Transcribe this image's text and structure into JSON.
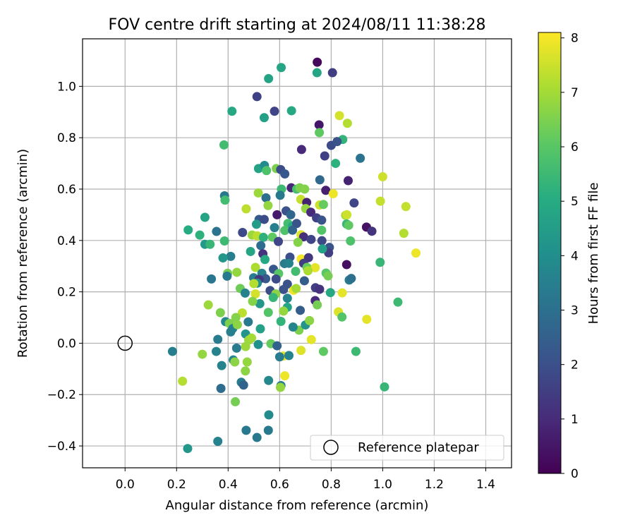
{
  "chart_data": {
    "type": "scatter",
    "title": "FOV centre drift starting at 2024/08/11 11:38:28",
    "xlabel": "Angular distance from reference (arcmin)",
    "ylabel": "Rotation from reference (arcmin)",
    "xlim": [
      -0.165,
      1.5
    ],
    "ylim": [
      -0.485,
      1.185
    ],
    "xticks": [
      0.0,
      0.2,
      0.4,
      0.6,
      0.8,
      1.0,
      1.2,
      1.4
    ],
    "yticks": [
      -0.4,
      -0.2,
      0.0,
      0.2,
      0.4,
      0.6,
      0.8,
      1.0
    ],
    "grid": true,
    "colorbar": {
      "label": "Hours from first FF file",
      "range": [
        0,
        8.1
      ],
      "ticks": [
        0,
        1,
        2,
        3,
        4,
        5,
        6,
        7,
        8
      ],
      "colormap": "viridis"
    },
    "legend": {
      "position": "lower-right",
      "entries": [
        "Reference platepar"
      ]
    },
    "reference_point": {
      "x": 0.0,
      "y": 0.0
    },
    "points": [
      [
        0.746,
        1.094,
        0.2
      ],
      [
        0.805,
        1.053,
        1.5
      ],
      [
        0.606,
        1.073,
        4.8
      ],
      [
        0.745,
        1.053,
        4.8
      ],
      [
        0.557,
        1.03,
        4.7
      ],
      [
        0.512,
        0.96,
        1.6
      ],
      [
        0.58,
        0.903,
        1.7
      ],
      [
        0.415,
        0.903,
        4.9
      ],
      [
        0.646,
        0.905,
        4.9
      ],
      [
        0.54,
        0.878,
        4.6
      ],
      [
        0.753,
        0.85,
        0.5
      ],
      [
        0.832,
        0.886,
        7.6
      ],
      [
        0.863,
        0.856,
        7.2
      ],
      [
        0.754,
        0.82,
        6.1
      ],
      [
        0.845,
        0.793,
        5.3
      ],
      [
        0.8,
        0.77,
        1.9
      ],
      [
        0.384,
        0.772,
        5.6
      ],
      [
        0.823,
        0.785,
        2.1
      ],
      [
        0.685,
        0.754,
        1.0
      ],
      [
        0.775,
        0.729,
        1.6
      ],
      [
        0.913,
        0.72,
        3.1
      ],
      [
        0.817,
        0.7,
        5.2
      ],
      [
        0.518,
        0.68,
        4.7
      ],
      [
        0.541,
        0.692,
        3.9
      ],
      [
        0.587,
        0.68,
        6.5
      ],
      [
        0.549,
        0.672,
        5.8
      ],
      [
        0.604,
        0.676,
        1.9
      ],
      [
        0.62,
        0.659,
        2.2
      ],
      [
        1.0,
        0.648,
        7.5
      ],
      [
        0.756,
        0.636,
        2.8
      ],
      [
        0.866,
        0.633,
        0.8
      ],
      [
        0.607,
        0.6,
        5.5
      ],
      [
        0.645,
        0.605,
        0.9
      ],
      [
        0.666,
        0.6,
        5.7
      ],
      [
        0.678,
        0.605,
        6.5
      ],
      [
        0.697,
        0.6,
        6.6
      ],
      [
        0.779,
        0.595,
        0.7
      ],
      [
        0.808,
        0.582,
        7.9
      ],
      [
        0.517,
        0.585,
        6.9
      ],
      [
        0.602,
        0.576,
        3.3
      ],
      [
        0.547,
        0.566,
        3.0
      ],
      [
        0.386,
        0.574,
        3.3
      ],
      [
        0.388,
        0.557,
        5.6
      ],
      [
        0.682,
        0.56,
        7.4
      ],
      [
        0.705,
        0.548,
        0.8
      ],
      [
        0.755,
        0.538,
        7.5
      ],
      [
        0.77,
        0.54,
        6.2
      ],
      [
        0.991,
        0.553,
        7.4
      ],
      [
        0.889,
        0.546,
        1.7
      ],
      [
        0.47,
        0.523,
        7.3
      ],
      [
        0.555,
        0.536,
        6.8
      ],
      [
        0.625,
        0.515,
        2.1
      ],
      [
        0.701,
        0.524,
        6.8
      ],
      [
        0.59,
        0.5,
        0.6
      ],
      [
        0.643,
        0.5,
        2.7
      ],
      [
        0.721,
        0.51,
        1.0
      ],
      [
        0.856,
        0.498,
        7.0
      ],
      [
        0.861,
        0.5,
        7.5
      ],
      [
        1.09,
        0.532,
        7.4
      ],
      [
        0.52,
        0.482,
        2.3
      ],
      [
        0.54,
        0.482,
        1.9
      ],
      [
        0.632,
        0.466,
        5.6
      ],
      [
        0.65,
        0.456,
        4.9
      ],
      [
        0.666,
        0.466,
        2.1
      ],
      [
        0.743,
        0.488,
        1.6
      ],
      [
        0.763,
        0.479,
        2.1
      ],
      [
        0.31,
        0.49,
        4.7
      ],
      [
        0.51,
        0.463,
        4.5
      ],
      [
        0.58,
        0.45,
        3.5
      ],
      [
        0.86,
        0.464,
        5.4
      ],
      [
        0.868,
        0.459,
        6.1
      ],
      [
        0.937,
        0.452,
        0.4
      ],
      [
        0.958,
        0.436,
        1.2
      ],
      [
        0.245,
        0.441,
        5.0
      ],
      [
        0.29,
        0.421,
        5.2
      ],
      [
        0.355,
        0.435,
        3.1
      ],
      [
        0.456,
        0.431,
        1.8
      ],
      [
        0.493,
        0.421,
        6.9
      ],
      [
        0.513,
        0.418,
        7.3
      ],
      [
        0.537,
        0.412,
        5.2
      ],
      [
        0.572,
        0.413,
        6.1
      ],
      [
        0.62,
        0.439,
        5.8
      ],
      [
        0.65,
        0.44,
        2.6
      ],
      [
        0.683,
        0.422,
        7.7
      ],
      [
        0.693,
        0.414,
        1.1
      ],
      [
        0.763,
        0.44,
        5.9
      ],
      [
        0.764,
        0.399,
        1.8
      ],
      [
        0.722,
        0.404,
        1.7
      ],
      [
        0.671,
        0.393,
        6.6
      ],
      [
        0.595,
        0.396,
        1.7
      ],
      [
        0.527,
        0.38,
        2.9
      ],
      [
        0.31,
        0.385,
        4.4
      ],
      [
        0.33,
        0.385,
        5.4
      ],
      [
        0.386,
        0.398,
        5.5
      ],
      [
        0.875,
        0.398,
        5.8
      ],
      [
        1.082,
        0.428,
        7.2
      ],
      [
        1.129,
        0.351,
        7.9
      ],
      [
        0.535,
        0.348,
        1.2
      ],
      [
        0.487,
        0.357,
        4.8
      ],
      [
        0.41,
        0.338,
        3.5
      ],
      [
        0.38,
        0.332,
        4.3
      ],
      [
        0.543,
        0.326,
        4.9
      ],
      [
        0.64,
        0.335,
        2.0
      ],
      [
        0.684,
        0.328,
        8.0
      ],
      [
        0.712,
        0.333,
        1.3
      ],
      [
        0.793,
        0.373,
        2.1
      ],
      [
        0.79,
        0.352,
        1.5
      ],
      [
        0.766,
        0.367,
        4.6
      ],
      [
        0.99,
        0.315,
        5.4
      ],
      [
        0.86,
        0.306,
        0.3
      ],
      [
        0.506,
        0.295,
        7.1
      ],
      [
        0.576,
        0.288,
        2.2
      ],
      [
        0.619,
        0.31,
        3.4
      ],
      [
        0.636,
        0.311,
        3.6
      ],
      [
        0.693,
        0.311,
        1.5
      ],
      [
        0.706,
        0.295,
        6.2
      ],
      [
        0.738,
        0.294,
        7.8
      ],
      [
        0.71,
        0.282,
        7.1
      ],
      [
        0.662,
        0.28,
        5.6
      ],
      [
        0.531,
        0.272,
        3.6
      ],
      [
        0.434,
        0.276,
        6.8
      ],
      [
        0.398,
        0.272,
        6.4
      ],
      [
        0.396,
        0.261,
        3.3
      ],
      [
        0.596,
        0.271,
        6.0
      ],
      [
        0.78,
        0.273,
        6.0
      ],
      [
        0.788,
        0.262,
        6.4
      ],
      [
        0.87,
        0.246,
        3.4
      ],
      [
        0.878,
        0.252,
        3.0
      ],
      [
        0.335,
        0.25,
        3.2
      ],
      [
        0.499,
        0.255,
        3.4
      ],
      [
        0.546,
        0.251,
        2.3
      ],
      [
        0.586,
        0.25,
        1.9
      ],
      [
        0.63,
        0.23,
        2.1
      ],
      [
        0.696,
        0.243,
        2.4
      ],
      [
        0.52,
        0.248,
        1.3
      ],
      [
        0.513,
        0.234,
        4.0
      ],
      [
        0.5,
        0.232,
        7.2
      ],
      [
        0.447,
        0.213,
        6.3
      ],
      [
        0.466,
        0.195,
        3.6
      ],
      [
        0.506,
        0.192,
        7.6
      ],
      [
        0.563,
        0.205,
        1.9
      ],
      [
        0.615,
        0.209,
        2.1
      ],
      [
        0.654,
        0.206,
        7.9
      ],
      [
        0.664,
        0.213,
        7.0
      ],
      [
        0.739,
        0.216,
        1.5
      ],
      [
        0.755,
        0.21,
        1.2
      ],
      [
        0.797,
        0.197,
        4.9
      ],
      [
        0.843,
        0.196,
        7.8
      ],
      [
        0.585,
        0.192,
        6.7
      ],
      [
        0.575,
        0.178,
        5.4
      ],
      [
        0.63,
        0.175,
        3.7
      ],
      [
        0.738,
        0.166,
        1.0
      ],
      [
        0.746,
        0.149,
        6.4
      ],
      [
        0.556,
        0.12,
        5.9
      ],
      [
        0.63,
        0.14,
        4.8
      ],
      [
        0.523,
        0.154,
        4.3
      ],
      [
        0.495,
        0.163,
        6.6
      ],
      [
        0.68,
        0.128,
        2.4
      ],
      [
        0.615,
        0.125,
        6.8
      ],
      [
        0.828,
        0.122,
        7.7
      ],
      [
        0.842,
        0.102,
        5.9
      ],
      [
        0.938,
        0.093,
        7.8
      ],
      [
        1.059,
        0.16,
        5.5
      ],
      [
        0.323,
        0.149,
        6.9
      ],
      [
        0.37,
        0.119,
        6.5
      ],
      [
        0.455,
        0.118,
        7.3
      ],
      [
        0.43,
        0.1,
        6.6
      ],
      [
        0.39,
        0.084,
        3.8
      ],
      [
        0.405,
        0.077,
        6.5
      ],
      [
        0.418,
        0.057,
        3.6
      ],
      [
        0.436,
        0.072,
        6.7
      ],
      [
        0.478,
        0.083,
        3.3
      ],
      [
        0.525,
        0.056,
        4.6
      ],
      [
        0.605,
        0.085,
        5.3
      ],
      [
        0.675,
        0.051,
        6.5
      ],
      [
        0.7,
        0.071,
        4.2
      ],
      [
        0.716,
        0.088,
        6.7
      ],
      [
        0.652,
        0.063,
        3.7
      ],
      [
        0.41,
        0.044,
        3.5
      ],
      [
        0.36,
        0.015,
        3.4
      ],
      [
        0.468,
        0.036,
        4.2
      ],
      [
        0.48,
        0.012,
        6.9
      ],
      [
        0.491,
        0.02,
        7.0
      ],
      [
        0.468,
        -0.013,
        6.9
      ],
      [
        0.517,
        -0.005,
        4.1
      ],
      [
        0.566,
        -0.002,
        6.2
      ],
      [
        0.723,
        0.014,
        7.8
      ],
      [
        0.59,
        -0.01,
        2.6
      ],
      [
        0.683,
        -0.028,
        7.7
      ],
      [
        0.354,
        -0.032,
        3.6
      ],
      [
        0.184,
        -0.032,
        3.5
      ],
      [
        0.3,
        -0.043,
        6.8
      ],
      [
        0.433,
        -0.019,
        3.4
      ],
      [
        0.77,
        -0.032,
        6.1
      ],
      [
        0.896,
        -0.032,
        5.5
      ],
      [
        0.614,
        -0.05,
        7.8
      ],
      [
        0.6,
        -0.053,
        3.4
      ],
      [
        0.636,
        -0.048,
        3.6
      ],
      [
        0.42,
        -0.065,
        3.7
      ],
      [
        0.474,
        -0.073,
        6.8
      ],
      [
        0.426,
        -0.073,
        6.7
      ],
      [
        0.375,
        -0.087,
        3.6
      ],
      [
        0.467,
        -0.108,
        6.7
      ],
      [
        0.62,
        -0.127,
        7.9
      ],
      [
        0.451,
        -0.152,
        3.4
      ],
      [
        0.557,
        -0.145,
        3.8
      ],
      [
        0.46,
        -0.163,
        2.6
      ],
      [
        0.605,
        -0.165,
        3.4
      ],
      [
        0.603,
        -0.172,
        6.8
      ],
      [
        0.223,
        -0.148,
        7.2
      ],
      [
        0.372,
        -0.176,
        2.9
      ],
      [
        1.007,
        -0.17,
        5.4
      ],
      [
        0.428,
        -0.228,
        6.4
      ],
      [
        0.558,
        -0.279,
        3.9
      ],
      [
        0.47,
        -0.339,
        3.3
      ],
      [
        0.556,
        -0.339,
        3.3
      ],
      [
        0.512,
        -0.367,
        3.3
      ],
      [
        0.36,
        -0.382,
        3.6
      ],
      [
        0.243,
        -0.41,
        4.3
      ]
    ]
  }
}
